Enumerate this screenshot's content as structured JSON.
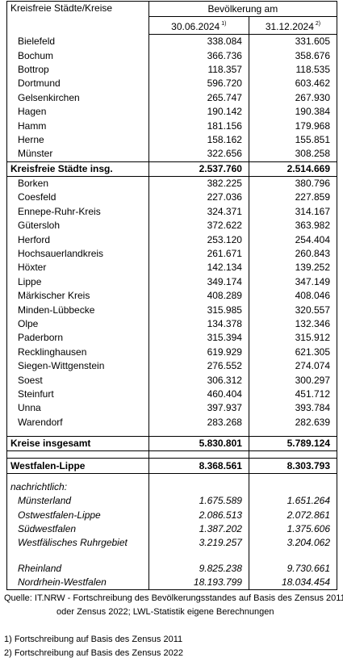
{
  "header": {
    "col1": "Kreisfreie Städte/Kreise",
    "group": "Bevölkerung am",
    "date1": "30.06.2024",
    "date1_note": "1)",
    "date2": "31.12.2024",
    "date2_note": "2)"
  },
  "cities": [
    {
      "name": "Bielefeld",
      "v1": "338.084",
      "v2": "331.605"
    },
    {
      "name": "Bochum",
      "v1": "366.736",
      "v2": "358.676"
    },
    {
      "name": "Bottrop",
      "v1": "118.357",
      "v2": "118.535"
    },
    {
      "name": "Dortmund",
      "v1": "596.720",
      "v2": "603.462"
    },
    {
      "name": "Gelsenkirchen",
      "v1": "265.747",
      "v2": "267.930"
    },
    {
      "name": "Hagen",
      "v1": "190.142",
      "v2": "190.384"
    },
    {
      "name": "Hamm",
      "v1": "181.156",
      "v2": "179.968"
    },
    {
      "name": "Herne",
      "v1": "158.162",
      "v2": "155.851"
    },
    {
      "name": "Münster",
      "v1": "322.656",
      "v2": "308.258"
    }
  ],
  "cities_total": {
    "name": "Kreisfreie Städte insg.",
    "v1": "2.537.760",
    "v2": "2.514.669"
  },
  "districts": [
    {
      "name": "Borken",
      "v1": "382.225",
      "v2": "380.796"
    },
    {
      "name": "Coesfeld",
      "v1": "227.036",
      "v2": "227.859"
    },
    {
      "name": "Ennepe-Ruhr-Kreis",
      "v1": "324.371",
      "v2": "314.167"
    },
    {
      "name": "Gütersloh",
      "v1": "372.622",
      "v2": "363.982"
    },
    {
      "name": "Herford",
      "v1": "253.120",
      "v2": "254.404"
    },
    {
      "name": "Hochsauerlandkreis",
      "v1": "261.671",
      "v2": "260.843"
    },
    {
      "name": "Höxter",
      "v1": "142.134",
      "v2": "139.252"
    },
    {
      "name": "Lippe",
      "v1": "349.174",
      "v2": "347.149"
    },
    {
      "name": "Märkischer Kreis",
      "v1": "408.289",
      "v2": "408.046"
    },
    {
      "name": "Minden-Lübbecke",
      "v1": "315.985",
      "v2": "320.557"
    },
    {
      "name": "Olpe",
      "v1": "134.378",
      "v2": "132.346"
    },
    {
      "name": "Paderborn",
      "v1": "315.394",
      "v2": "315.912"
    },
    {
      "name": "Recklinghausen",
      "v1": "619.929",
      "v2": "621.305"
    },
    {
      "name": "Siegen-Wittgenstein",
      "v1": "276.552",
      "v2": "274.074"
    },
    {
      "name": "Soest",
      "v1": "306.312",
      "v2": "300.297"
    },
    {
      "name": "Steinfurt",
      "v1": "460.404",
      "v2": "451.712"
    },
    {
      "name": "Unna",
      "v1": "397.937",
      "v2": "393.784"
    },
    {
      "name": "Warendorf",
      "v1": "283.268",
      "v2": "282.639"
    }
  ],
  "districts_total": {
    "name": "Kreise insgesamt",
    "v1": "5.830.801",
    "v2": "5.789.124"
  },
  "grand_total": {
    "name": "Westfalen-Lippe",
    "v1": "8.368.561",
    "v2": "8.303.793"
  },
  "memo": {
    "label": "nachrichtlich:",
    "regions": [
      {
        "name": "Münsterland",
        "v1": "1.675.589",
        "v2": "1.651.264"
      },
      {
        "name": "Ostwestfalen-Lippe",
        "v1": "2.086.513",
        "v2": "2.072.861"
      },
      {
        "name": "Südwestfalen",
        "v1": "1.387.202",
        "v2": "1.375.606"
      },
      {
        "name": "Westfälisches Ruhrgebiet",
        "v1": "3.219.257",
        "v2": "3.204.062"
      }
    ],
    "others": [
      {
        "name": "Rheinland",
        "v1": "9.825.238",
        "v2": "9.730.661"
      },
      {
        "name": "Nordrhein-Westfalen",
        "v1": "18.193.799",
        "v2": "18.034.454"
      }
    ]
  },
  "notes": {
    "source_line1": "Quelle: IT.NRW - Fortschreibung des Bevölkerungsstandes auf Basis des Zensus 2011",
    "source_line2": "oder Zensus 2022; LWL-Statistik eigene Berechnungen",
    "footnote1": "1) Fortschreibung auf Basis des Zensus 2011",
    "footnote2": "2) Fortschreibung auf Basis des Zensus 2022"
  }
}
